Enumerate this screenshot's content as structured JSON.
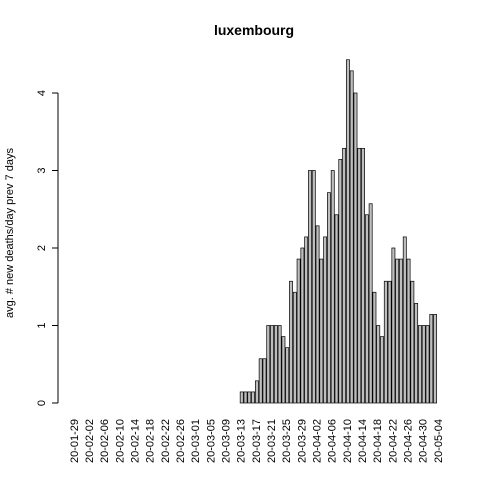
{
  "chart_data": {
    "type": "bar",
    "title": "luxembourg",
    "xlabel": "",
    "ylabel": "avg. # new deaths/day prev  7  days",
    "ylim": [
      0,
      4.5
    ],
    "yticks": [
      0,
      1,
      2,
      3,
      4
    ],
    "bar_color": "#bebebe",
    "bar_border": "#000000",
    "tick_labels": [
      "20-01-29",
      "20-02-02",
      "20-02-06",
      "20-02-10",
      "20-02-14",
      "20-02-18",
      "20-02-22",
      "20-02-26",
      "20-03-01",
      "20-03-05",
      "20-03-09",
      "20-03-13",
      "20-03-17",
      "20-03-21",
      "20-03-25",
      "20-03-29",
      "20-04-02",
      "20-04-06",
      "20-04-10",
      "20-04-14",
      "20-04-18",
      "20-04-22",
      "20-04-26",
      "20-04-30",
      "20-05-04"
    ],
    "first_date": "20-01-29",
    "values": [
      0,
      0,
      0,
      0,
      0,
      0,
      0,
      0,
      0,
      0,
      0,
      0,
      0,
      0,
      0,
      0,
      0,
      0,
      0,
      0,
      0,
      0,
      0,
      0,
      0,
      0,
      0,
      0,
      0,
      0,
      0,
      0,
      0,
      0,
      0,
      0,
      0,
      0,
      0,
      0,
      0,
      0,
      0,
      0,
      0.143,
      0.143,
      0.143,
      0.143,
      0.286,
      0.571,
      0.571,
      1.0,
      1.0,
      1.0,
      1.0,
      0.857,
      0.714,
      1.571,
      1.429,
      1.857,
      2.0,
      2.143,
      3.0,
      3.0,
      2.286,
      1.857,
      2.143,
      2.714,
      3.0,
      2.429,
      3.143,
      3.286,
      4.429,
      4.286,
      4.0,
      3.286,
      3.286,
      2.429,
      2.571,
      1.429,
      1.0,
      0.857,
      1.571,
      1.571,
      2.0,
      1.857,
      1.857,
      2.143,
      1.857,
      1.571,
      1.286,
      1.0,
      1.0,
      1.0,
      1.143,
      1.143
    ]
  }
}
